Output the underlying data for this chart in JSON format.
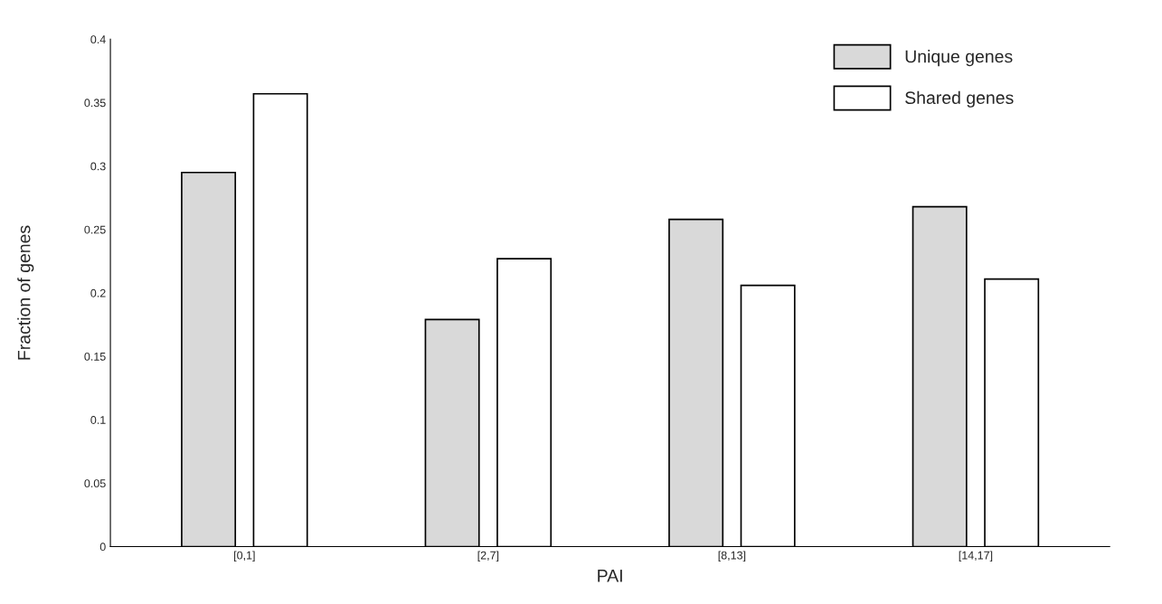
{
  "chart_data": {
    "type": "bar",
    "xlabel": "PAI",
    "ylabel": "Fraction of genes",
    "categories": [
      "[0,1]",
      "[2,7]",
      "[8,13]",
      "[14,17]"
    ],
    "series": [
      {
        "name": "Unique genes",
        "color": "#d9d9d9",
        "values": [
          0.295,
          0.179,
          0.258,
          0.268
        ]
      },
      {
        "name": "Shared genes",
        "color": "#ffffff",
        "values": [
          0.357,
          0.227,
          0.206,
          0.211
        ]
      }
    ],
    "ylim": [
      0,
      0.4
    ],
    "yticks": [
      0,
      0.05,
      0.1,
      0.15,
      0.2,
      0.25,
      0.3,
      0.35,
      0.4
    ],
    "grid": false,
    "legend": "top right"
  }
}
